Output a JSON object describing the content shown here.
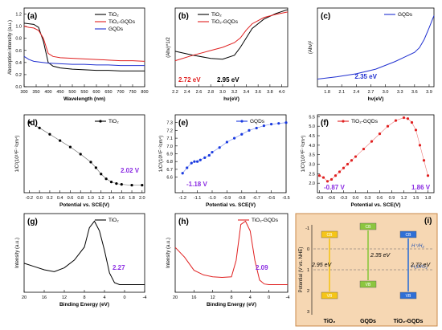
{
  "chart_data": [
    {
      "panel": "(a)",
      "type": "line",
      "ylabel": "Absorption intensity (a.u.)",
      "xlabel": "Wavelength (nm)",
      "xlim": [
        300,
        800
      ],
      "ylim": [
        0.0,
        1.3
      ],
      "xticks": [
        "300",
        "350",
        "400",
        "450",
        "500",
        "550",
        "600",
        "650",
        "700",
        "750",
        "800"
      ],
      "yticks": [
        "0.0",
        "0.2",
        "0.4",
        "0.6",
        "0.8",
        "1.0",
        "1.2"
      ],
      "legend": "top-right",
      "series": [
        {
          "name": "TiO₂",
          "color": "#000000",
          "x": [
            300,
            320,
            340,
            360,
            380,
            400,
            420,
            450,
            500,
            550,
            600,
            650,
            700,
            750,
            800
          ],
          "y": [
            1.05,
            1.04,
            1.03,
            0.98,
            0.75,
            0.4,
            0.34,
            0.31,
            0.29,
            0.28,
            0.27,
            0.27,
            0.26,
            0.26,
            0.26
          ]
        },
        {
          "name": "TiO₂-GQDs",
          "color": "#e02020",
          "x": [
            300,
            320,
            340,
            360,
            380,
            400,
            420,
            450,
            500,
            550,
            600,
            650,
            700,
            750,
            800
          ],
          "y": [
            1.0,
            0.98,
            0.97,
            0.93,
            0.8,
            0.55,
            0.5,
            0.48,
            0.47,
            0.46,
            0.45,
            0.44,
            0.43,
            0.43,
            0.42
          ]
        },
        {
          "name": "GQDs",
          "color": "#2030d0",
          "x": [
            300,
            320,
            340,
            360,
            380,
            400,
            450,
            500,
            550,
            600,
            650,
            700,
            750,
            800
          ],
          "y": [
            0.5,
            0.45,
            0.42,
            0.41,
            0.4,
            0.39,
            0.38,
            0.37,
            0.37,
            0.36,
            0.36,
            0.35,
            0.35,
            0.35
          ]
        }
      ]
    },
    {
      "panel": "(b)",
      "type": "line",
      "ylabel": "(Ahν)^1/2",
      "xlabel": "hν(eV)",
      "xlim": [
        2.2,
        4.1
      ],
      "ylim": [
        0,
        1
      ],
      "xticks": [
        "2.2",
        "2.4",
        "2.6",
        "2.8",
        "3.0",
        "3.2",
        "3.4",
        "3.6",
        "3.8",
        "4.0"
      ],
      "legend": "top-center",
      "annotations": [
        {
          "text": "2.72 eV",
          "color": "#e02020"
        },
        {
          "text": "2.95 eV",
          "color": "#000000"
        }
      ],
      "series": [
        {
          "name": "TiO₂",
          "color": "#000000",
          "x": [
            2.2,
            2.5,
            2.8,
            3.0,
            3.2,
            3.3,
            3.4,
            3.5,
            3.7,
            3.9,
            4.1
          ],
          "y": [
            0.45,
            0.4,
            0.36,
            0.35,
            0.4,
            0.5,
            0.62,
            0.74,
            0.86,
            0.93,
            0.98
          ]
        },
        {
          "name": "TiO₂-GQDs",
          "color": "#e02020",
          "x": [
            2.2,
            2.5,
            2.8,
            3.0,
            3.2,
            3.3,
            3.4,
            3.5,
            3.7,
            3.9,
            4.1
          ],
          "y": [
            0.33,
            0.4,
            0.46,
            0.5,
            0.56,
            0.62,
            0.72,
            0.8,
            0.88,
            0.92,
            0.95
          ]
        }
      ]
    },
    {
      "panel": "(c)",
      "type": "line",
      "ylabel": "(Ahν)²",
      "xlabel": "hν(eV)",
      "xlim": [
        1.6,
        4.0
      ],
      "xticks": [
        "1.8",
        "2.1",
        "2.4",
        "2.7",
        "3.0",
        "3.3",
        "3.6",
        "3.9"
      ],
      "legend": "top-right",
      "annotations": [
        {
          "text": "2.35 eV",
          "color": "#2030d0"
        }
      ],
      "series": [
        {
          "name": "GQDs",
          "color": "#2030d0",
          "x": [
            1.6,
            2.0,
            2.4,
            2.8,
            3.0,
            3.2,
            3.4,
            3.6,
            3.7,
            3.8,
            3.9,
            4.0
          ],
          "y": [
            0.03,
            0.06,
            0.1,
            0.16,
            0.21,
            0.26,
            0.32,
            0.38,
            0.44,
            0.55,
            0.7,
            0.86
          ]
        }
      ]
    },
    {
      "panel": "(d)",
      "type": "scatter",
      "ylabel": "1/C²(10¹⁰F⁻²cm⁴)",
      "xlabel": "Potential vs. SCE(V)",
      "xlim": [
        -0.3,
        2.05
      ],
      "xticks": [
        "-0.2",
        "0.0",
        "0.2",
        "0.4",
        "0.6",
        "0.8",
        "1.0",
        "1.2",
        "1.4",
        "1.6",
        "1.8",
        "2.0"
      ],
      "legend": "top-right",
      "annotations": [
        {
          "text": "2.02 V",
          "color": "#8a2be2"
        }
      ],
      "series": [
        {
          "name": "TiO₂",
          "color": "#000000",
          "x": [
            -0.2,
            0.0,
            0.2,
            0.4,
            0.6,
            0.8,
            1.0,
            1.1,
            1.2,
            1.3,
            1.4,
            1.5,
            1.6,
            1.8,
            2.0
          ],
          "y": [
            0.95,
            0.88,
            0.8,
            0.72,
            0.64,
            0.55,
            0.45,
            0.38,
            0.3,
            0.24,
            0.2,
            0.18,
            0.17,
            0.16,
            0.16
          ]
        }
      ]
    },
    {
      "panel": "(e)",
      "type": "scatter",
      "ylabel": "1/C²(10¹¹F⁻²cm⁴)",
      "xlabel": "Potential vs. SCE(V)",
      "xlim": [
        -1.25,
        -0.5
      ],
      "ylim": [
        6.4,
        7.4
      ],
      "xticks": [
        "-1.2",
        "-1.1",
        "-1.0",
        "-0.9",
        "-0.8",
        "-0.7",
        "-0.6",
        "-0.5"
      ],
      "yticks": [
        "6.6",
        "6.7",
        "6.8",
        "6.9",
        "7.0",
        "7.1",
        "7.2",
        "7.3"
      ],
      "legend": "top-right",
      "annotations": [
        {
          "text": "-1.18 V",
          "color": "#8a2be2"
        }
      ],
      "series": [
        {
          "name": "GQDs",
          "color": "#1a3ae0",
          "x": [
            -1.2,
            -1.17,
            -1.14,
            -1.12,
            -1.1,
            -1.08,
            -1.05,
            -1.02,
            -1.0,
            -0.95,
            -0.9,
            -0.85,
            -0.8,
            -0.75,
            -0.7,
            -0.65,
            -0.6,
            -0.55,
            -0.5
          ],
          "y": [
            6.65,
            6.72,
            6.78,
            6.8,
            6.8,
            6.82,
            6.85,
            6.88,
            6.92,
            6.98,
            7.05,
            7.1,
            7.15,
            7.2,
            7.23,
            7.26,
            7.28,
            7.29,
            7.3
          ]
        }
      ]
    },
    {
      "panel": "(f)",
      "type": "scatter",
      "ylabel": "1/C²(10¹⁰F⁻²cm⁴)",
      "xlabel": "Potential vs. SCE(V)",
      "xlim": [
        -0.95,
        1.95
      ],
      "ylim": [
        1.5,
        5.6
      ],
      "xticks": [
        "-0.9",
        "-0.6",
        "-0.3",
        "0.0",
        "0.3",
        "0.6",
        "0.9",
        "1.2",
        "1.5",
        "1.8"
      ],
      "yticks": [
        "2.0",
        "2.5",
        "3.0",
        "3.5",
        "4.0",
        "4.5",
        "5.0",
        "5.5"
      ],
      "legend": "top-left",
      "annotations": [
        {
          "text": "-0.87 V",
          "color": "#8a2be2"
        },
        {
          "text": "1.86 V",
          "color": "#8a2be2"
        }
      ],
      "series": [
        {
          "name": "TiO₂-GQDs",
          "color": "#e02020",
          "x": [
            -0.9,
            -0.8,
            -0.7,
            -0.6,
            -0.5,
            -0.4,
            -0.3,
            -0.2,
            -0.1,
            0.0,
            0.2,
            0.4,
            0.6,
            0.8,
            1.0,
            1.2,
            1.3,
            1.4,
            1.5,
            1.6,
            1.7,
            1.8
          ],
          "y": [
            2.4,
            2.3,
            2.1,
            2.2,
            2.4,
            2.6,
            2.8,
            3.0,
            3.2,
            3.4,
            3.8,
            4.2,
            4.6,
            5.0,
            5.3,
            5.45,
            5.4,
            5.2,
            4.8,
            4.0,
            3.2,
            2.4
          ]
        }
      ]
    },
    {
      "panel": "(g)",
      "type": "line",
      "ylabel": "Intensity (a.u.)",
      "xlabel": "Binding Energy (eV)",
      "xlim": [
        20,
        -4
      ],
      "xticks": [
        "20",
        "16",
        "12",
        "8",
        "4",
        "0",
        "-4"
      ],
      "legend": "top-right",
      "annotations": [
        {
          "text": "2.27",
          "color": "#8a2be2"
        }
      ],
      "series": [
        {
          "name": "TiO₂",
          "color": "#000000",
          "x": [
            20,
            18,
            16,
            14,
            12,
            10,
            8,
            7,
            6,
            5,
            4,
            3,
            2,
            1,
            0,
            -2,
            -4
          ],
          "y": [
            0.35,
            0.3,
            0.25,
            0.22,
            0.28,
            0.4,
            0.6,
            0.9,
            1.0,
            0.85,
            0.55,
            0.2,
            0.05,
            0.02,
            0.02,
            0.02,
            0.02
          ]
        }
      ]
    },
    {
      "panel": "(h)",
      "type": "line",
      "ylabel": "Intensity (a.u.)",
      "xlabel": "Binding Energy (eV)",
      "xlim": [
        20,
        -4
      ],
      "xticks": [
        "20",
        "16",
        "12",
        "8",
        "4",
        "0",
        "-4"
      ],
      "legend": "top-right",
      "annotations": [
        {
          "text": "2.09",
          "color": "#8a2be2"
        }
      ],
      "series": [
        {
          "name": "TiO₂-GQDs",
          "color": "#e02020",
          "x": [
            20,
            18,
            16,
            14,
            12,
            10,
            8,
            7,
            6,
            5,
            4,
            3,
            2,
            1,
            0,
            -2,
            -4
          ],
          "y": [
            0.6,
            0.45,
            0.25,
            0.18,
            0.15,
            0.14,
            0.15,
            0.4,
            0.95,
            1.0,
            0.85,
            0.4,
            0.1,
            0.04,
            0.03,
            0.03,
            0.03
          ]
        }
      ]
    }
  ],
  "panel_i": {
    "label": "(i)",
    "ylabel": "Potential (V vs. NHE)",
    "yticks": [
      "-1",
      "0",
      "1",
      "2",
      "3"
    ],
    "ref_lines": [
      "H⁺/H₂",
      "H₂O/O₂"
    ],
    "columns": [
      {
        "name": "TiO₂",
        "gap": "2.95 eV",
        "cb": "CB",
        "vb": "VB",
        "color": "#f5c518"
      },
      {
        "name": "GQDs",
        "gap": "2.35 eV",
        "cb": "CB",
        "vb": "VB",
        "color": "#8cc63f"
      },
      {
        "name": "TiO₂-GQDs",
        "gap": "2.72 eV",
        "cb": "CB",
        "vb": "VB",
        "color": "#2f6fd6"
      }
    ],
    "colors": {
      "background": "#f6d7b3",
      "border": "#c98a4a"
    }
  }
}
